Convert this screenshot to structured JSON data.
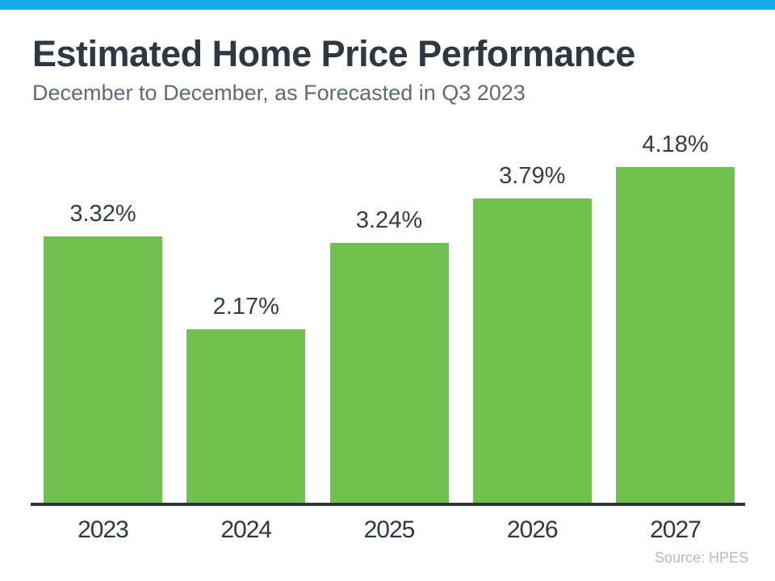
{
  "page": {
    "background_color": "#ffffff",
    "accent_bar_color": "#17a9e8"
  },
  "header": {
    "title": "Estimated Home Price Performance",
    "subtitle": "December to December, as Forecasted in Q3 2023"
  },
  "chart_data": {
    "type": "bar",
    "categories": [
      "2023",
      "2024",
      "2025",
      "2026",
      "2027"
    ],
    "values": [
      3.32,
      2.17,
      3.24,
      3.79,
      4.18
    ],
    "value_labels": [
      "3.32%",
      "2.17%",
      "3.24%",
      "3.79%",
      "4.18%"
    ],
    "title": "Estimated Home Price Performance",
    "subtitle": "December to December, as Forecasted in Q3 2023",
    "xlabel": "",
    "ylabel": "",
    "ylim": [
      0,
      4.6
    ],
    "grid": false,
    "legend": false,
    "bar_color": "#6fc04e",
    "axis_line_color": "#2b333d",
    "value_label_color": "#323d47",
    "tick_label_color": "#2d3842"
  },
  "footer": {
    "source": "Source: HPES"
  }
}
